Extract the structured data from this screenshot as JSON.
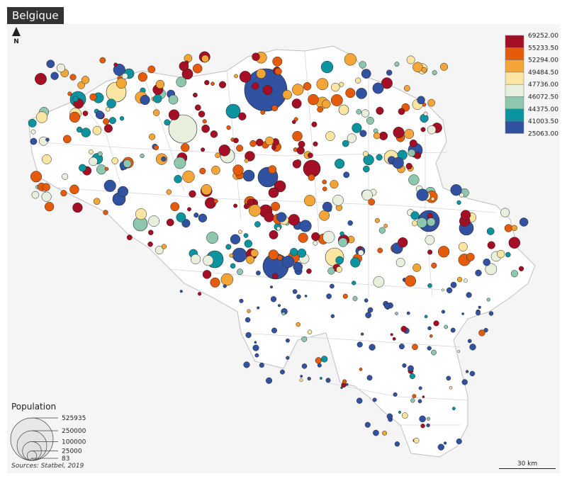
{
  "title": "Belgique",
  "north_label": "N",
  "colors": {
    "background": "#f5f5f5",
    "communes_fill": "#ffffff",
    "communes_stroke": "#bfbfbf",
    "circle_stroke": "#222222"
  },
  "choropleth_legend": {
    "breaks": [
      "69252.00",
      "55233.50",
      "52294.00",
      "49484.50",
      "47736.00",
      "46072.50",
      "44375.00",
      "41003.50",
      "25063.00"
    ],
    "classes": [
      {
        "color": "#a50f25"
      },
      {
        "color": "#e45c0b"
      },
      {
        "color": "#f3a637"
      },
      {
        "color": "#fbe5a2"
      },
      {
        "color": "#e8efdc"
      },
      {
        "color": "#8fc7ae"
      },
      {
        "color": "#0c93a0"
      },
      {
        "color": "#3152a0"
      }
    ]
  },
  "size_legend": {
    "title": "Population",
    "values": [
      "525935",
      "250000",
      "100000",
      "25000",
      "83"
    ]
  },
  "sources": "Sources: Statbel, 2019",
  "scale_label": "30 km"
}
